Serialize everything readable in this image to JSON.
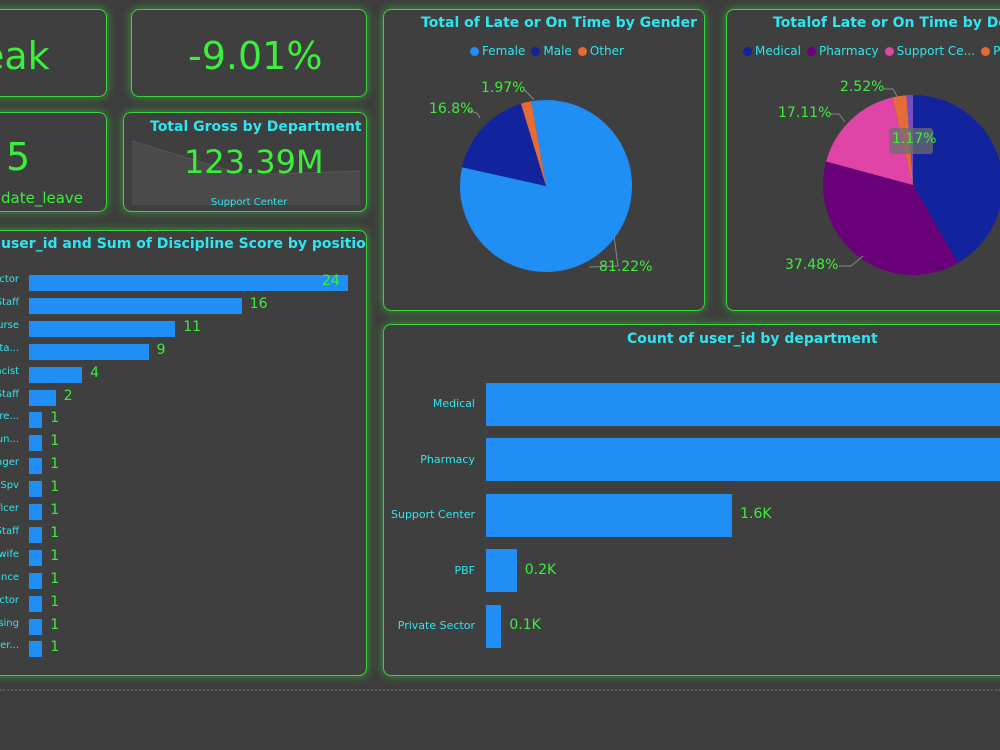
{
  "kpi_top_left": {
    "value": "eak"
  },
  "kpi_top_mid": {
    "value": "-9.01%"
  },
  "kpi_mid_left": {
    "value": "5",
    "label": "date_leave"
  },
  "gross_card": {
    "title": "Total Gross by Department",
    "value": "123.39M",
    "subtitle": "Support Center"
  },
  "discipline_card": {
    "title": "user_id and Sum of Discipline Score by position"
  },
  "gender_card": {
    "title": "Total of Late or On Time by Gender"
  },
  "dept_pie_card": {
    "title": "Totalof Late or On Time by Depa",
    "tooltip": "1.17%"
  },
  "dept_count_card": {
    "title": "Count of user_id by department"
  },
  "colors": {
    "accent": "#3af03a",
    "title": "#2ee6ef",
    "bar": "#1f8ef5"
  },
  "chart_data": [
    {
      "type": "bar",
      "orientation": "horizontal",
      "title": "user_id and Sum of Discipline Score by position",
      "categories": [
        "ctor",
        "Staff",
        "urse",
        "Sta...",
        "acist",
        "Staff",
        "re...",
        "un...",
        "ager",
        "Spv",
        "ficer",
        "Staff",
        "wife",
        "ance",
        "ctor",
        "sing",
        "er..."
      ],
      "values": [
        24,
        16,
        11,
        9,
        4,
        2,
        1,
        1,
        1,
        1,
        1,
        1,
        1,
        1,
        1,
        1,
        1
      ],
      "data_labels": [
        "24",
        "16",
        "11",
        "9",
        "4",
        "2",
        "1",
        "1",
        "1",
        "1",
        "1",
        "1",
        "1",
        "1",
        "1",
        "1",
        "1"
      ],
      "xlim": [
        0,
        24
      ]
    },
    {
      "type": "pie",
      "title": "Total of Late or On Time by Gender",
      "legend": "top",
      "slices": [
        {
          "name": "Female",
          "value": 81.22,
          "label": "81.22%",
          "color": "#1f8ef5"
        },
        {
          "name": "Male",
          "value": 16.8,
          "label": "16.8%",
          "color": "#12239e"
        },
        {
          "name": "Other",
          "value": 1.97,
          "label": "1.97%",
          "color": "#e66c37"
        }
      ]
    },
    {
      "type": "pie",
      "title": "Totalof Late or On Time by Depa",
      "legend": "top",
      "legend_entries": [
        {
          "name": "Medical",
          "color": "#12239e"
        },
        {
          "name": "Pharmacy",
          "color": "#6b007b"
        },
        {
          "name": "Support Ce...",
          "color": "#e044a7"
        },
        {
          "name": "PBF",
          "color": "#e66c37"
        }
      ],
      "slices": [
        {
          "name": "Medical",
          "value": 41.72,
          "label": "",
          "color": "#12239e"
        },
        {
          "name": "Pharmacy",
          "value": 37.48,
          "label": "37.48%",
          "color": "#6b007b"
        },
        {
          "name": "Support Center",
          "value": 17.11,
          "label": "17.11%",
          "color": "#e044a7"
        },
        {
          "name": "PBF",
          "value": 2.52,
          "label": "2.52%",
          "color": "#e66c37"
        },
        {
          "name": "Private Sector",
          "value": 1.17,
          "label": "1.17%",
          "color": "#744ec2"
        }
      ]
    },
    {
      "type": "bar",
      "orientation": "horizontal",
      "title": "Count of user_id by department",
      "categories": [
        "Medical",
        "Pharmacy",
        "Support Center",
        "PBF",
        "Private Sector"
      ],
      "values": [
        4000,
        3600,
        1600,
        200,
        100
      ],
      "data_labels": [
        "",
        "",
        "1.6K",
        "0.2K",
        "0.1K"
      ],
      "xlim": [
        0,
        3900
      ]
    }
  ]
}
